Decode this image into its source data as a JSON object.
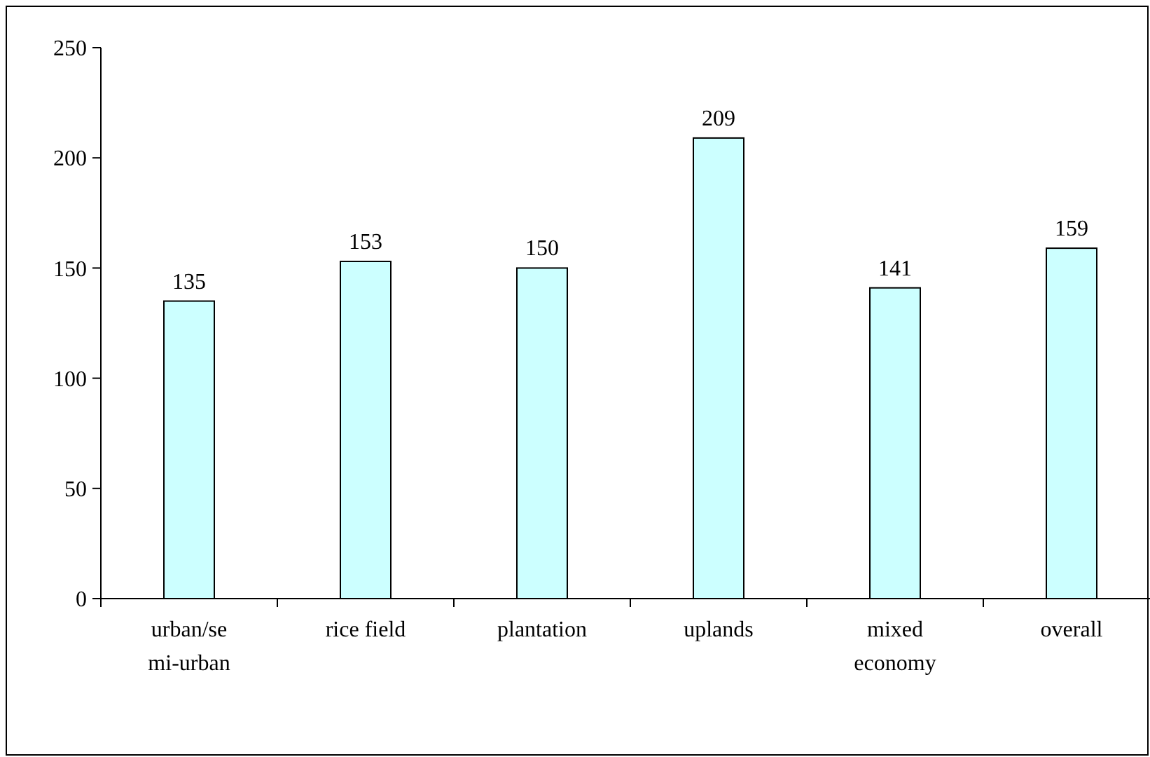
{
  "chart_data": {
    "type": "bar",
    "categories": [
      "urban/semi-urban",
      "rice field",
      "plantation",
      "uplands",
      "mixed economy",
      "overall"
    ],
    "values": [
      135,
      153,
      150,
      209,
      141,
      159
    ],
    "color": "#ccffff",
    "ylim": [
      0,
      250
    ],
    "yticks": [
      0,
      50,
      100,
      150,
      200,
      250
    ],
    "data_labels": true
  }
}
